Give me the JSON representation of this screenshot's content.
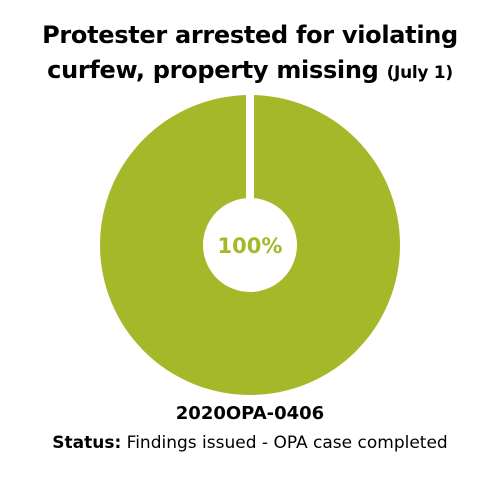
{
  "chart_data": {
    "type": "pie",
    "donut": true,
    "title": "Protester arrested for violating curfew, property missing",
    "title_note": "(July 1)",
    "values": [
      100
    ],
    "value_labels": [
      "100%"
    ],
    "color": "#a5b82a",
    "case_id": "2020OPA-0406",
    "status_label": "Status:",
    "status_text": "Findings issued - OPA case completed"
  }
}
